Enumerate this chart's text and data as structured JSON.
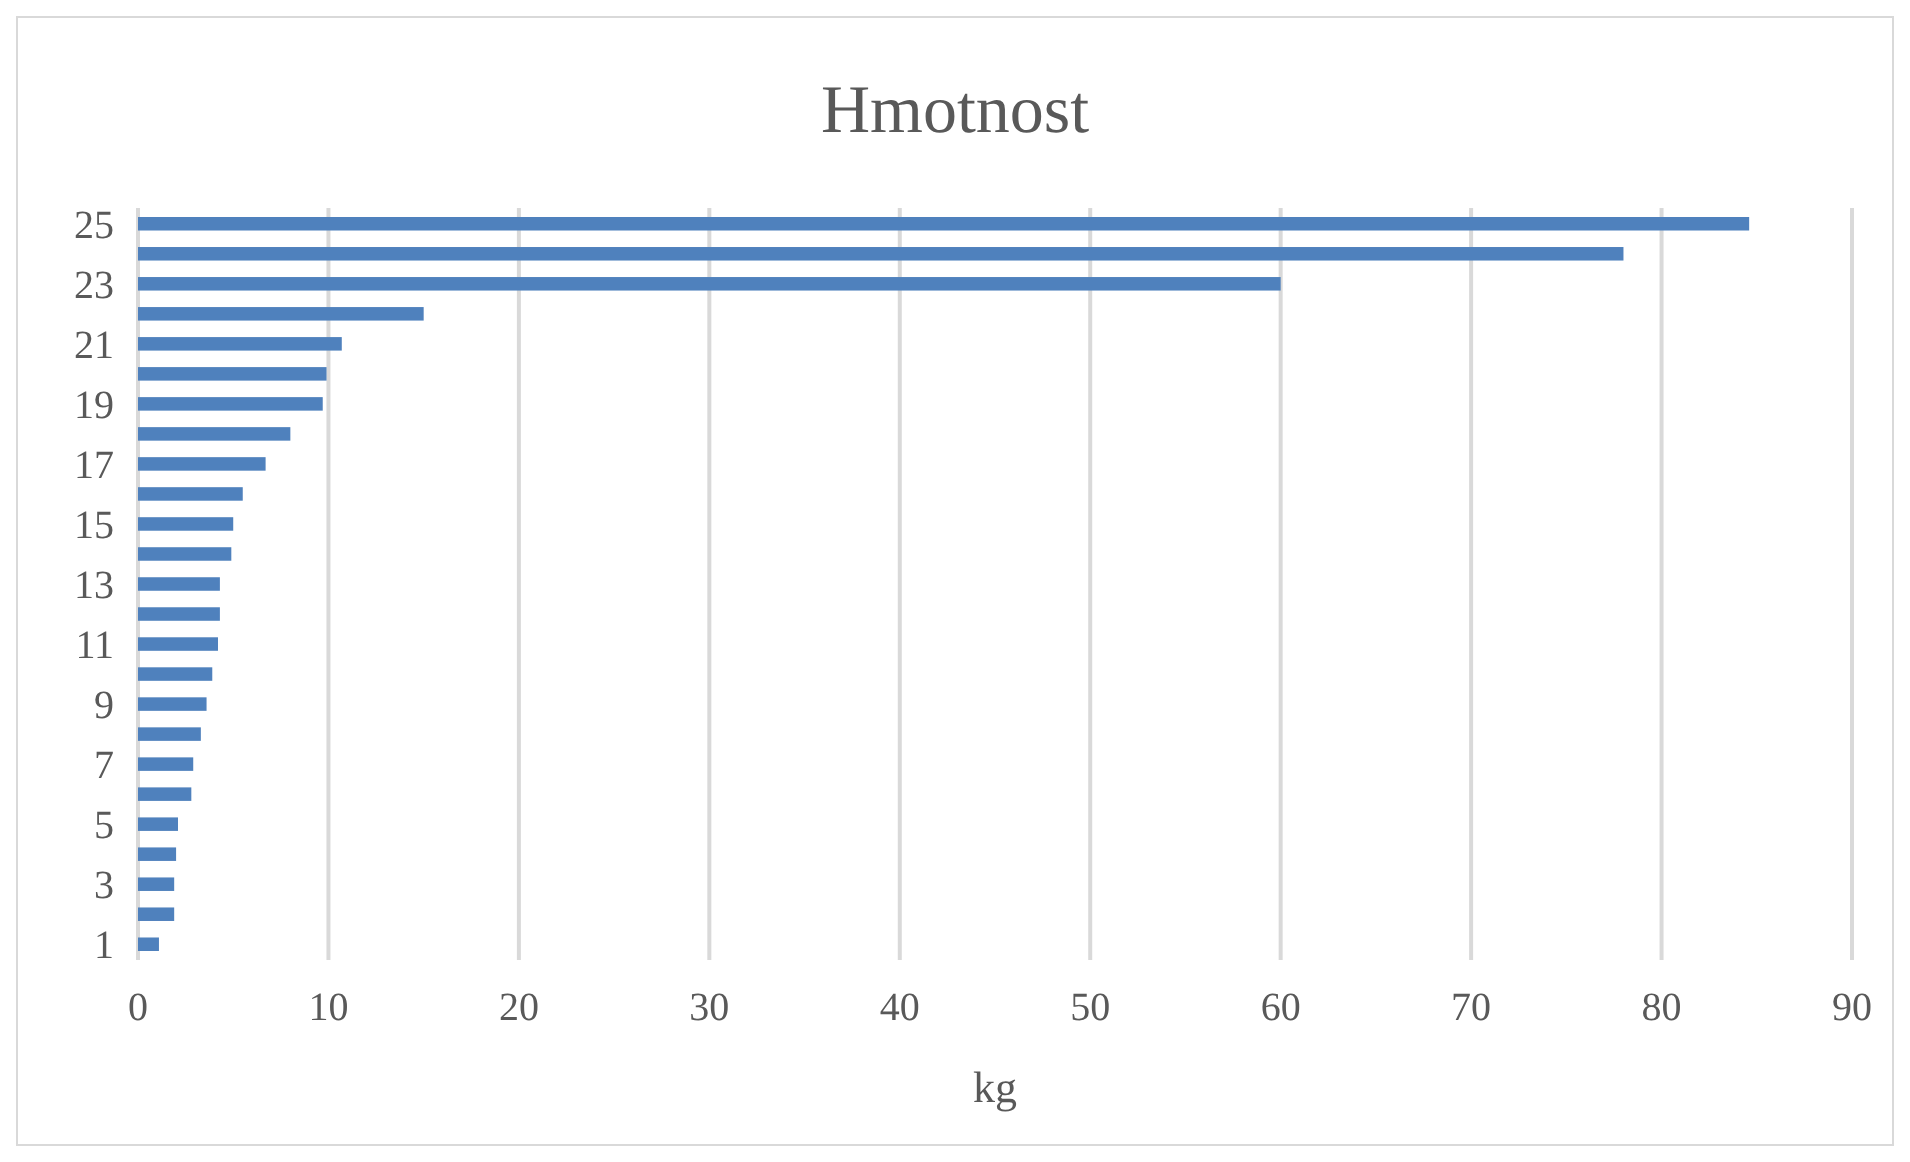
{
  "chart_data": {
    "type": "bar",
    "orientation": "horizontal",
    "title": "Hmotnost",
    "xlabel": "kg",
    "categories": [
      "25",
      null,
      "23",
      null,
      "21",
      null,
      "19",
      null,
      "17",
      null,
      "15",
      null,
      "13",
      null,
      "11",
      null,
      "9",
      null,
      "7",
      null,
      "5",
      null,
      "3",
      null,
      "1"
    ],
    "values": [
      84.6,
      78.0,
      60,
      15.0,
      10.7,
      9.9,
      9.7,
      8.0,
      6.7,
      5.5,
      5.0,
      4.9,
      4.3,
      4.3,
      4.2,
      3.9,
      3.6,
      3.3,
      2.9,
      2.8,
      2.1,
      2.0,
      1.9,
      1.9,
      1.1
    ],
    "color": "#4f81bd",
    "xlim": [
      0,
      90
    ],
    "xticks": [
      0,
      10,
      20,
      30,
      40,
      50,
      60,
      70,
      80,
      90
    ],
    "grid": "x"
  }
}
